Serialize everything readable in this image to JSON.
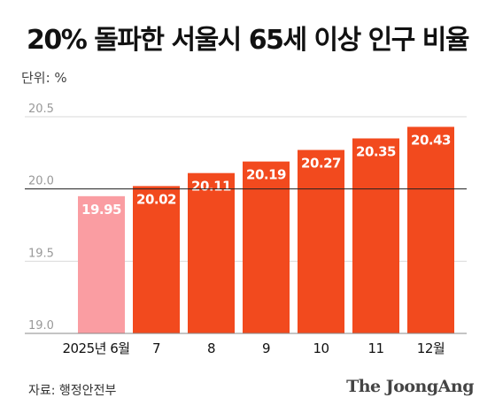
{
  "header": {
    "title": "20% 돌파한 서울시 65세 이상 인구 비율",
    "unit_label": "단위: %"
  },
  "footer": {
    "source": "자료: 행정안전부",
    "logo": "The JoongAng"
  },
  "chart_data": {
    "type": "bar",
    "title": "20% 돌파한 서울시 65세 이상 인구 비율",
    "categories": [
      "2025년 6월",
      "7",
      "8",
      "9",
      "10",
      "11",
      "12월"
    ],
    "values": [
      19.95,
      20.02,
      20.11,
      20.19,
      20.27,
      20.35,
      20.43
    ],
    "data_labels": [
      "19.95",
      "20.02",
      "20.11",
      "20.19",
      "20.27",
      "20.35",
      "20.43"
    ],
    "y_ticks": [
      "20.5",
      "20.0",
      "19.5",
      "19.0"
    ],
    "ylim": [
      19.0,
      20.5
    ],
    "grid": true,
    "colors": {
      "highlight": "#fa9da2",
      "bar": "#f24a1e",
      "label_text": "#ffffff",
      "grid": "#d9d9d9",
      "ref_line": "#222222"
    },
    "highlight_index": 0,
    "reference_line": 20.0
  }
}
